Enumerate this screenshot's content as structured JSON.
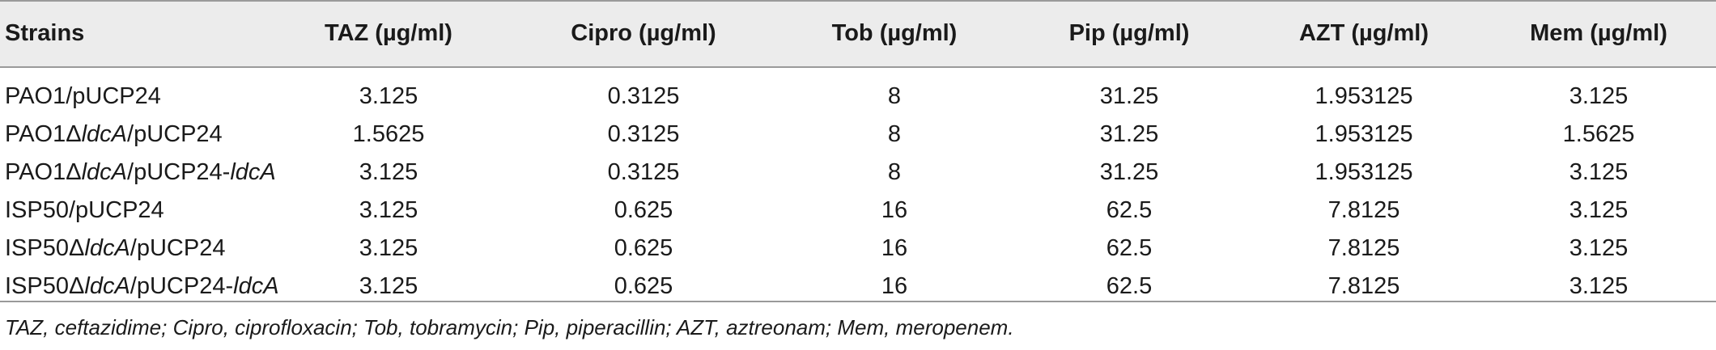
{
  "table": {
    "headers": [
      "Strains",
      "TAZ (µg/ml)",
      "Cipro (µg/ml)",
      "Tob (µg/ml)",
      "Pip (µg/ml)",
      "AZT (µg/ml)",
      "Mem (µg/ml)"
    ],
    "rows": [
      {
        "strain": {
          "pre": "PAO1/pUCP24",
          "gene": "",
          "post": "",
          "gene2": ""
        },
        "values": [
          "3.125",
          "0.3125",
          "8",
          "31.25",
          "1.953125",
          "3.125"
        ]
      },
      {
        "strain": {
          "pre": "PAO1Δ",
          "gene": "ldcA",
          "post": "/pUCP24",
          "gene2": ""
        },
        "values": [
          "1.5625",
          "0.3125",
          "8",
          "31.25",
          "1.953125",
          "1.5625"
        ]
      },
      {
        "strain": {
          "pre": "PAO1Δ",
          "gene": "ldcA",
          "post": "/pUCP24-",
          "gene2": "ldcA"
        },
        "values": [
          "3.125",
          "0.3125",
          "8",
          "31.25",
          "1.953125",
          "3.125"
        ]
      },
      {
        "strain": {
          "pre": "ISP50/pUCP24",
          "gene": "",
          "post": "",
          "gene2": ""
        },
        "values": [
          "3.125",
          "0.625",
          "16",
          "62.5",
          "7.8125",
          "3.125"
        ]
      },
      {
        "strain": {
          "pre": "ISP50Δ",
          "gene": "ldcA",
          "post": "/pUCP24",
          "gene2": ""
        },
        "values": [
          "3.125",
          "0.625",
          "16",
          "62.5",
          "7.8125",
          "3.125"
        ]
      },
      {
        "strain": {
          "pre": "ISP50Δ",
          "gene": "ldcA",
          "post": "/pUCP24-",
          "gene2": "ldcA"
        },
        "values": [
          "3.125",
          "0.625",
          "16",
          "62.5",
          "7.8125",
          "3.125"
        ]
      }
    ]
  },
  "footnote": "TAZ, ceftazidime; Cipro, ciprofloxacin; Tob, tobramycin; Pip, piperacillin; AZT, aztreonam; Mem, meropenem."
}
